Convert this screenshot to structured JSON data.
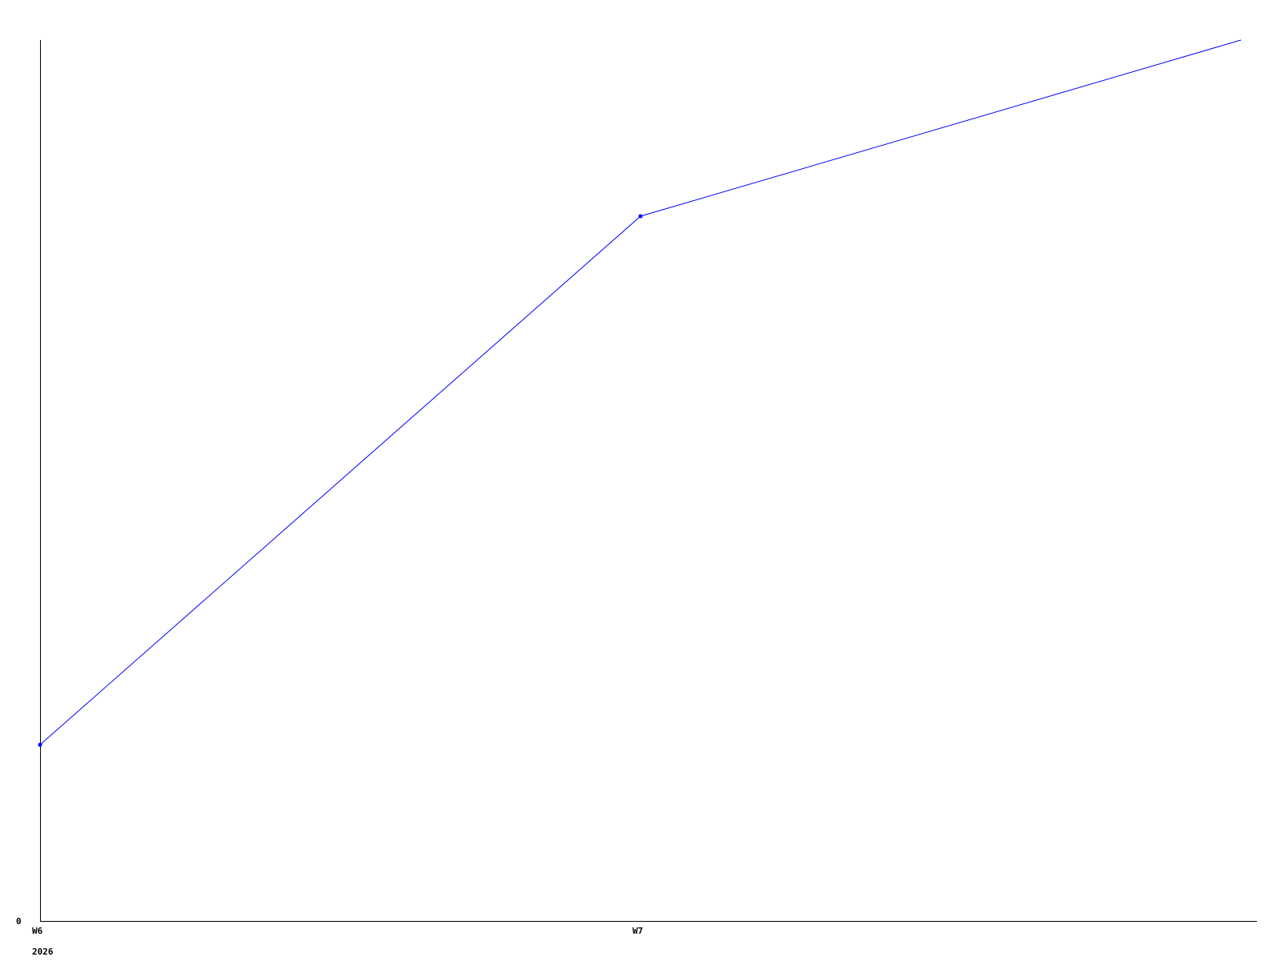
{
  "chart_data": {
    "type": "line",
    "title": "",
    "xlabel": "",
    "ylabel": "",
    "x_ticks": [
      {
        "x": 6,
        "label": "W6",
        "sublabel": "2026"
      },
      {
        "x": 7,
        "label": "W7"
      }
    ],
    "y_ticks": [
      {
        "y": 0,
        "label": "0"
      }
    ],
    "xlim": [
      6,
      8
    ],
    "ylim": [
      0,
      1
    ],
    "grid": false,
    "series": [
      {
        "color": "#0000ff",
        "x": [
          6,
          7,
          8
        ],
        "y": [
          0.2,
          0.8,
          1.0
        ],
        "markers": [
          true,
          true,
          false
        ]
      }
    ],
    "axis_color": "#000000"
  }
}
